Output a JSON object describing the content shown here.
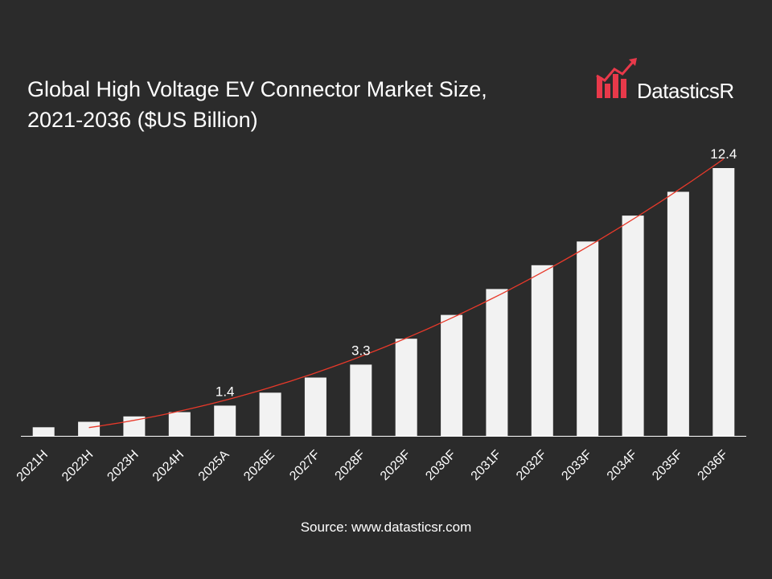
{
  "title_line1": "Global High Voltage EV Connector Market Size,",
  "title_line2": "2021-2036 ($US Billion)",
  "logo": {
    "text": "DatasticsR",
    "icon": "bar-chart-growth-arrow-icon",
    "accent": "#e8394a"
  },
  "source": "Source: www.datasticsr.com",
  "colors": {
    "background": "#2b2b2b",
    "bar": "#f2f2f2",
    "trend": "#e8392a",
    "text": "#ffffff",
    "axis": "#ffffff"
  },
  "chart_data": {
    "type": "bar",
    "title": "Global High Voltage EV Connector Market Size, 2021-2036 ($US Billion)",
    "xlabel": "",
    "ylabel": "",
    "categories": [
      "2021H",
      "2022H",
      "2023H",
      "2024H",
      "2025A",
      "2026E",
      "2027F",
      "2028F",
      "2029F",
      "2030F",
      "2031F",
      "2032F",
      "2033F",
      "2034F",
      "2035F",
      "2036F"
    ],
    "values": [
      0.4,
      0.65,
      0.9,
      1.1,
      1.4,
      2.0,
      2.7,
      3.3,
      4.5,
      5.6,
      6.8,
      7.9,
      9.0,
      10.2,
      11.3,
      12.4
    ],
    "data_labels": [
      {
        "category": "2025A",
        "text": "1.4"
      },
      {
        "category": "2028F",
        "text": "3.3"
      },
      {
        "category": "2036F",
        "text": "12.4"
      }
    ],
    "trendline": true,
    "ylim": [
      0,
      12.4
    ],
    "grid": false,
    "legend": "none"
  }
}
